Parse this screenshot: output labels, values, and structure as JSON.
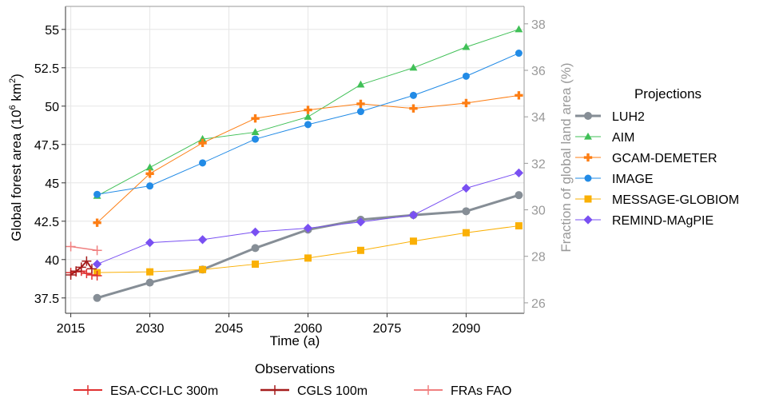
{
  "chart_data": {
    "type": "line",
    "xlabel": "Time (a)",
    "ylabel": "Global forest area (10⁶ km²)",
    "y2label": "Fraction of global land area (%)",
    "xlim": [
      2014,
      2101
    ],
    "ylim": [
      36.5,
      56.5
    ],
    "y2lim": [
      25.55,
      38.75
    ],
    "x_ticks": [
      "2015",
      "2030",
      "2045",
      "2060",
      "2075",
      "2090"
    ],
    "x_tick_values": [
      2015,
      2030,
      2045,
      2060,
      2075,
      2090
    ],
    "y_ticks": [
      "37.5",
      "40",
      "42.5",
      "45",
      "47.5",
      "50",
      "52.5",
      "55"
    ],
    "y_tick_values": [
      37.5,
      40,
      42.5,
      45,
      47.5,
      50,
      52.5,
      55
    ],
    "y2_ticks": [
      "26",
      "28",
      "30",
      "32",
      "34",
      "36",
      "38"
    ],
    "y2_tick_values": [
      26,
      28,
      30,
      32,
      34,
      36,
      38
    ],
    "grid": true,
    "projections_title": "Projections",
    "observations_title": "Observations",
    "series": [
      {
        "name": "LUH2",
        "group": "projections",
        "color": "#868e96",
        "marker": "circle",
        "width": 3,
        "x": [
          2020,
          2030,
          2040,
          2050,
          2060,
          2070,
          2080,
          2090,
          2100
        ],
        "values": [
          37.5,
          38.5,
          39.35,
          40.75,
          41.95,
          42.6,
          42.9,
          43.15,
          44.2
        ]
      },
      {
        "name": "AIM",
        "group": "projections",
        "color": "#40c057",
        "marker": "triangle",
        "width": 1,
        "x": [
          2020,
          2030,
          2040,
          2050,
          2060,
          2070,
          2080,
          2090,
          2100
        ],
        "values": [
          44.15,
          46.0,
          47.85,
          48.3,
          49.3,
          51.4,
          52.5,
          53.85,
          55.0
        ]
      },
      {
        "name": "GCAM-DEMETER",
        "group": "projections",
        "color": "#fd7e14",
        "marker": "plus",
        "width": 1,
        "x": [
          2020,
          2030,
          2040,
          2050,
          2060,
          2070,
          2080,
          2090,
          2100
        ],
        "values": [
          42.4,
          45.6,
          47.6,
          49.2,
          49.75,
          50.15,
          49.85,
          50.2,
          50.7
        ]
      },
      {
        "name": "IMAGE",
        "group": "projections",
        "color": "#228be6",
        "marker": "circle",
        "width": 1,
        "x": [
          2020,
          2030,
          2040,
          2050,
          2060,
          2070,
          2080,
          2090,
          2100
        ],
        "values": [
          44.25,
          44.8,
          46.3,
          47.85,
          48.8,
          49.65,
          50.7,
          51.95,
          53.45
        ]
      },
      {
        "name": "MESSAGE-GLOBIOM",
        "group": "projections",
        "color": "#fab005",
        "marker": "square",
        "width": 1,
        "x": [
          2020,
          2030,
          2040,
          2050,
          2060,
          2070,
          2080,
          2090,
          2100
        ],
        "values": [
          39.15,
          39.2,
          39.35,
          39.7,
          40.1,
          40.6,
          41.2,
          41.75,
          42.2
        ]
      },
      {
        "name": "REMIND-MAgPIE",
        "group": "projections",
        "color": "#7950f2",
        "marker": "diamond",
        "width": 1,
        "x": [
          2020,
          2030,
          2040,
          2050,
          2060,
          2070,
          2080,
          2090,
          2100
        ],
        "values": [
          39.7,
          41.1,
          41.3,
          41.8,
          42.05,
          42.45,
          42.9,
          44.65,
          45.65
        ]
      },
      {
        "name": "ESA-CCI-LC 300m",
        "group": "observations",
        "color": "#e03131",
        "marker": "cross",
        "width": 1.5,
        "x": [
          2015,
          2016,
          2017,
          2018,
          2019,
          2020
        ],
        "values": [
          39.15,
          39.2,
          39.25,
          39.1,
          39.0,
          38.95
        ]
      },
      {
        "name": "CGLS 100m",
        "group": "observations",
        "color": "#a51d1d",
        "marker": "cross",
        "width": 2,
        "x": [
          2015,
          2016,
          2017,
          2018,
          2019
        ],
        "values": [
          39.0,
          39.25,
          39.5,
          39.9,
          39.4
        ]
      },
      {
        "name": "FRAs FAO",
        "group": "observations",
        "color": "#f08080",
        "marker": "cross",
        "width": 1.5,
        "x": [
          2015,
          2020
        ],
        "values": [
          40.85,
          40.6
        ]
      }
    ]
  }
}
